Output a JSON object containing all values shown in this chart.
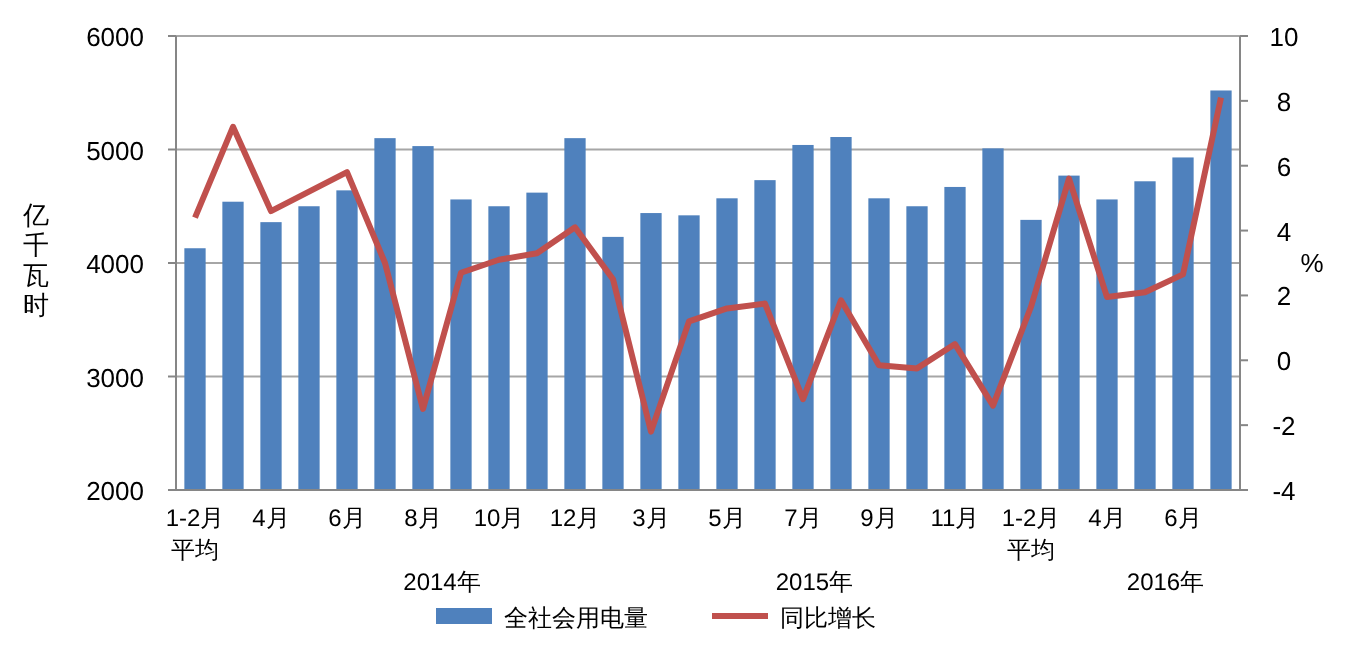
{
  "chart_data": {
    "type": "bar",
    "ylabel": "亿千瓦时",
    "y2label": "%",
    "categories": [
      "1-2月平均",
      null,
      "4月",
      null,
      "6月",
      null,
      "8月",
      null,
      "10月",
      null,
      "12月",
      null,
      "3月",
      null,
      "5月",
      null,
      "7月",
      null,
      "9月",
      null,
      "11月",
      null,
      "1-2月平均",
      null,
      "4月",
      null,
      "6月",
      null
    ],
    "series": [
      {
        "name": "全社会用电量",
        "color": "#4f81bd",
        "values": [
          4130,
          4540,
          4360,
          4500,
          4640,
          5100,
          5030,
          4560,
          4500,
          4620,
          5100,
          4230,
          4440,
          4420,
          4570,
          4730,
          5040,
          5110,
          4570,
          4500,
          4670,
          5010,
          4380,
          4770,
          4560,
          4720,
          4930,
          5520
        ]
      },
      {
        "name": "同比增长",
        "type": "line",
        "axis": "y2",
        "color": "#c0504d",
        "values": [
          4.4,
          7.2,
          4.6,
          5.2,
          5.8,
          3.0,
          -1.5,
          2.7,
          3.1,
          3.3,
          4.1,
          2.5,
          -2.2,
          1.2,
          1.6,
          1.75,
          -1.2,
          1.85,
          -0.15,
          -0.25,
          0.5,
          -1.4,
          1.65,
          5.6,
          1.95,
          2.1,
          2.65,
          8.1
        ]
      }
    ],
    "ylim": [
      2000,
      6000
    ],
    "yticks": [
      2000,
      3000,
      4000,
      5000,
      6000
    ],
    "y2lim": [
      -4,
      10
    ],
    "y2ticks": [
      -4,
      -2,
      0,
      2,
      4,
      6,
      8,
      10
    ],
    "grid": "y",
    "legend": "bottom",
    "annotations": [
      "2014年",
      "2015年",
      "2016年"
    ]
  }
}
